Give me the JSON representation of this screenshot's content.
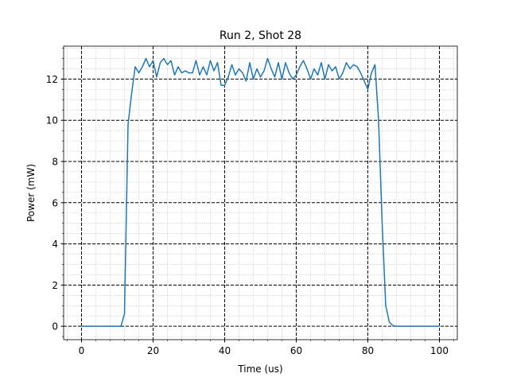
{
  "chart_data": {
    "type": "line",
    "title": "Run 2, Shot 28",
    "x_label": "Time (us)",
    "y_label": "Power (mW)",
    "x": [
      0,
      1,
      2,
      3,
      4,
      5,
      6,
      7,
      8,
      9,
      10,
      11,
      12,
      13,
      14,
      15,
      16,
      17,
      18,
      19,
      20,
      21,
      22,
      23,
      24,
      25,
      26,
      27,
      28,
      29,
      30,
      31,
      32,
      33,
      34,
      35,
      36,
      37,
      38,
      39,
      40,
      41,
      42,
      43,
      44,
      45,
      46,
      47,
      48,
      49,
      50,
      51,
      52,
      53,
      54,
      55,
      56,
      57,
      58,
      59,
      60,
      61,
      62,
      63,
      64,
      65,
      66,
      67,
      68,
      69,
      70,
      71,
      72,
      73,
      74,
      75,
      76,
      77,
      78,
      79,
      80,
      81,
      82,
      83,
      84,
      85,
      86,
      87,
      88,
      89,
      90,
      91,
      92,
      93,
      94,
      95,
      96,
      97,
      98,
      99,
      100
    ],
    "series": [
      {
        "color": "#1f77b4",
        "values": [
          0,
          0,
          0,
          0,
          0,
          0,
          0,
          0,
          0,
          0,
          0,
          0,
          0.6,
          9.8,
          11.3,
          12.6,
          12.3,
          12.6,
          13.0,
          12.6,
          12.9,
          12.1,
          12.8,
          13.0,
          12.7,
          12.9,
          12.2,
          12.6,
          12.3,
          12.4,
          12.3,
          12.3,
          12.9,
          12.2,
          12.6,
          12.2,
          12.9,
          12.4,
          12.8,
          11.7,
          11.7,
          12.1,
          12.7,
          12.2,
          12.5,
          12.3,
          11.9,
          12.8,
          12.0,
          12.5,
          12.1,
          12.4,
          13.0,
          12.5,
          12.1,
          12.8,
          12.0,
          12.8,
          12.3,
          12.0,
          12.2,
          12.6,
          12.9,
          12.5,
          12.0,
          12.5,
          12.2,
          12.8,
          12.0,
          12.7,
          12.4,
          12.6,
          12.0,
          12.3,
          12.8,
          12.5,
          12.7,
          12.6,
          12.3,
          11.9,
          11.5,
          12.3,
          12.7,
          10.0,
          5.0,
          1.0,
          0.2,
          0.03,
          0,
          0,
          0,
          0,
          0,
          0,
          0,
          0,
          0,
          0,
          0,
          0,
          0
        ]
      }
    ],
    "xlim": [
      -5,
      105
    ],
    "ylim": [
      -0.65,
      13.6
    ],
    "xticks": [
      0,
      20,
      40,
      60,
      80,
      100
    ],
    "yticks": [
      0,
      2,
      4,
      6,
      8,
      10,
      12
    ],
    "grid": true,
    "minor_grid": true,
    "minor_divisions": {
      "x": 5,
      "y": 4
    }
  }
}
